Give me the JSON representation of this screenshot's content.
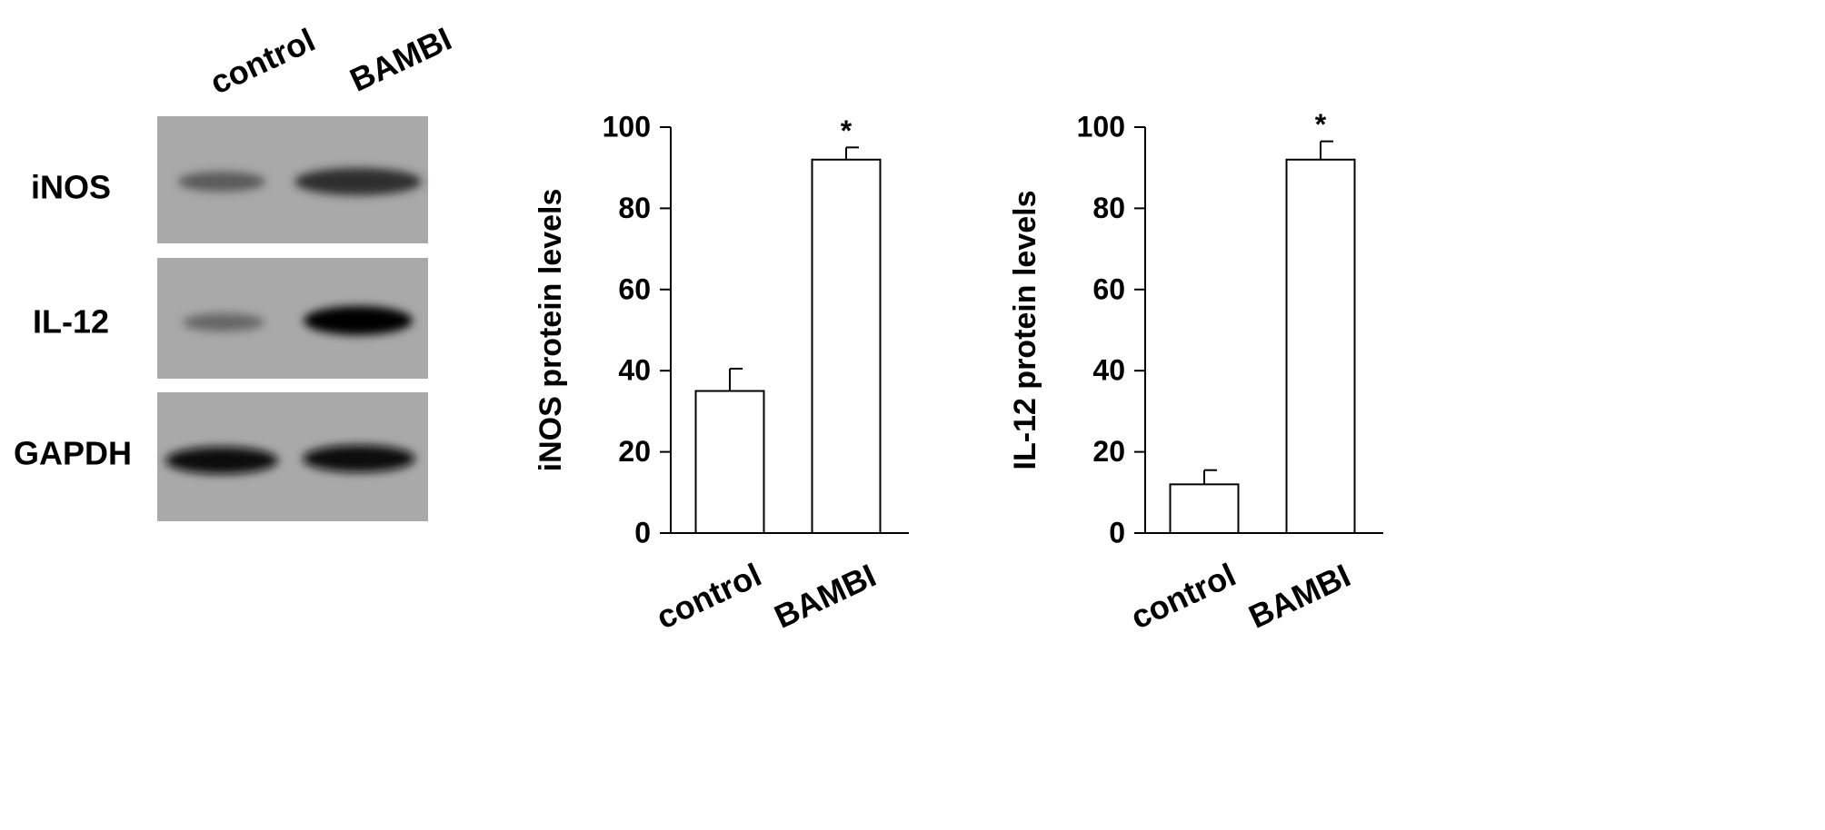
{
  "blot": {
    "lanes": [
      "control",
      "BAMBI"
    ],
    "rows": [
      "iNOS",
      "IL-12",
      "GAPDH"
    ]
  },
  "chart_data": [
    {
      "type": "bar",
      "ylabel": "iNOS protein levels",
      "categories": [
        "control",
        "BAMBI"
      ],
      "values": [
        35,
        92
      ],
      "errors": [
        5.5,
        3
      ],
      "value_annotations": [
        null,
        "*"
      ],
      "color": "#ffffff",
      "ylim": [
        0,
        100
      ],
      "yticks": [
        0,
        20,
        40,
        60,
        80,
        100
      ]
    },
    {
      "type": "bar",
      "ylabel": "IL-12 protein levels",
      "categories": [
        "control",
        "BAMBI"
      ],
      "values": [
        12,
        92
      ],
      "errors": [
        3.5,
        4.5
      ],
      "value_annotations": [
        null,
        "*"
      ],
      "color": "#ffffff",
      "ylim": [
        0,
        100
      ],
      "yticks": [
        0,
        20,
        40,
        60,
        80,
        100
      ]
    }
  ]
}
